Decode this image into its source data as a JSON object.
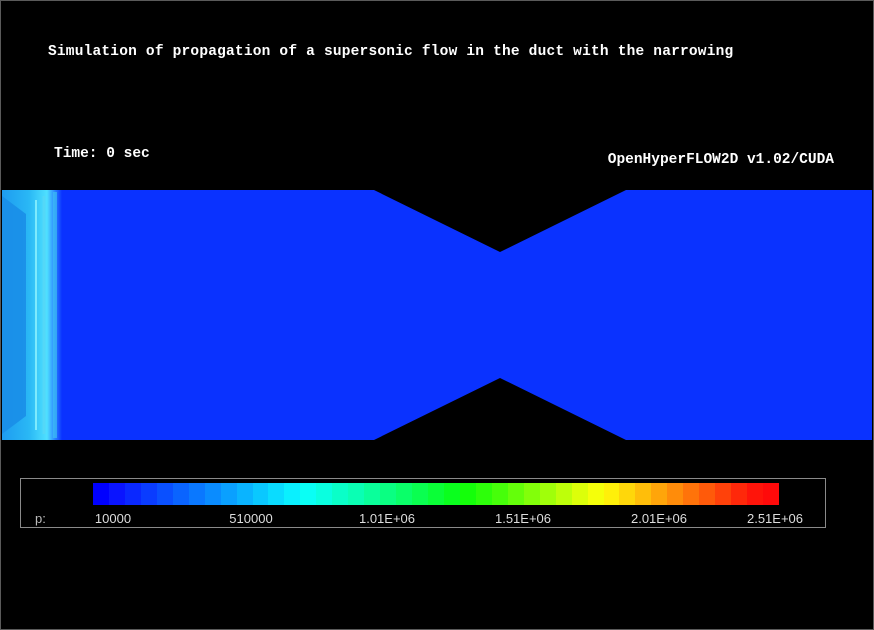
{
  "header": {
    "title": "Simulation of propagation of a supersonic flow in the duct with the narrowing",
    "time_label": "Time: 0 sec",
    "version": "OpenHyperFLOW2D v1.02/CUDA"
  },
  "colors": {
    "background": "#000000",
    "flow_field": "#0a32ff",
    "shock_front": "#36c8f0",
    "wall": "#000000"
  },
  "legend": {
    "variable": "p:",
    "ticks": [
      "10000",
      "510000",
      "1.01E+06",
      "1.51E+06",
      "2.01E+06",
      "2.51E+06"
    ],
    "colormap": [
      "#0000ff",
      "#0a14ff",
      "#0a28ff",
      "#0a3cff",
      "#0a50ff",
      "#0a64ff",
      "#0a78ff",
      "#0a8cff",
      "#0aa0ff",
      "#0ab4ff",
      "#0ac8ff",
      "#0adcff",
      "#0af0ff",
      "#0afff5",
      "#0affe0",
      "#0affc8",
      "#0affb4",
      "#0aff9b",
      "#0aff82",
      "#0aff69",
      "#0aff50",
      "#0aff37",
      "#0aff1e",
      "#14ff0a",
      "#2dff0a",
      "#46ff0a",
      "#64ff0a",
      "#82ff0a",
      "#a0ff0a",
      "#beff0a",
      "#dcff0a",
      "#f5ff0a",
      "#fff00a",
      "#ffd70a",
      "#ffbe0a",
      "#ffa50a",
      "#ff8c0a",
      "#ff730a",
      "#ff5a0a",
      "#ff410a",
      "#ff280a",
      "#ff140a",
      "#ff0a0a"
    ]
  }
}
